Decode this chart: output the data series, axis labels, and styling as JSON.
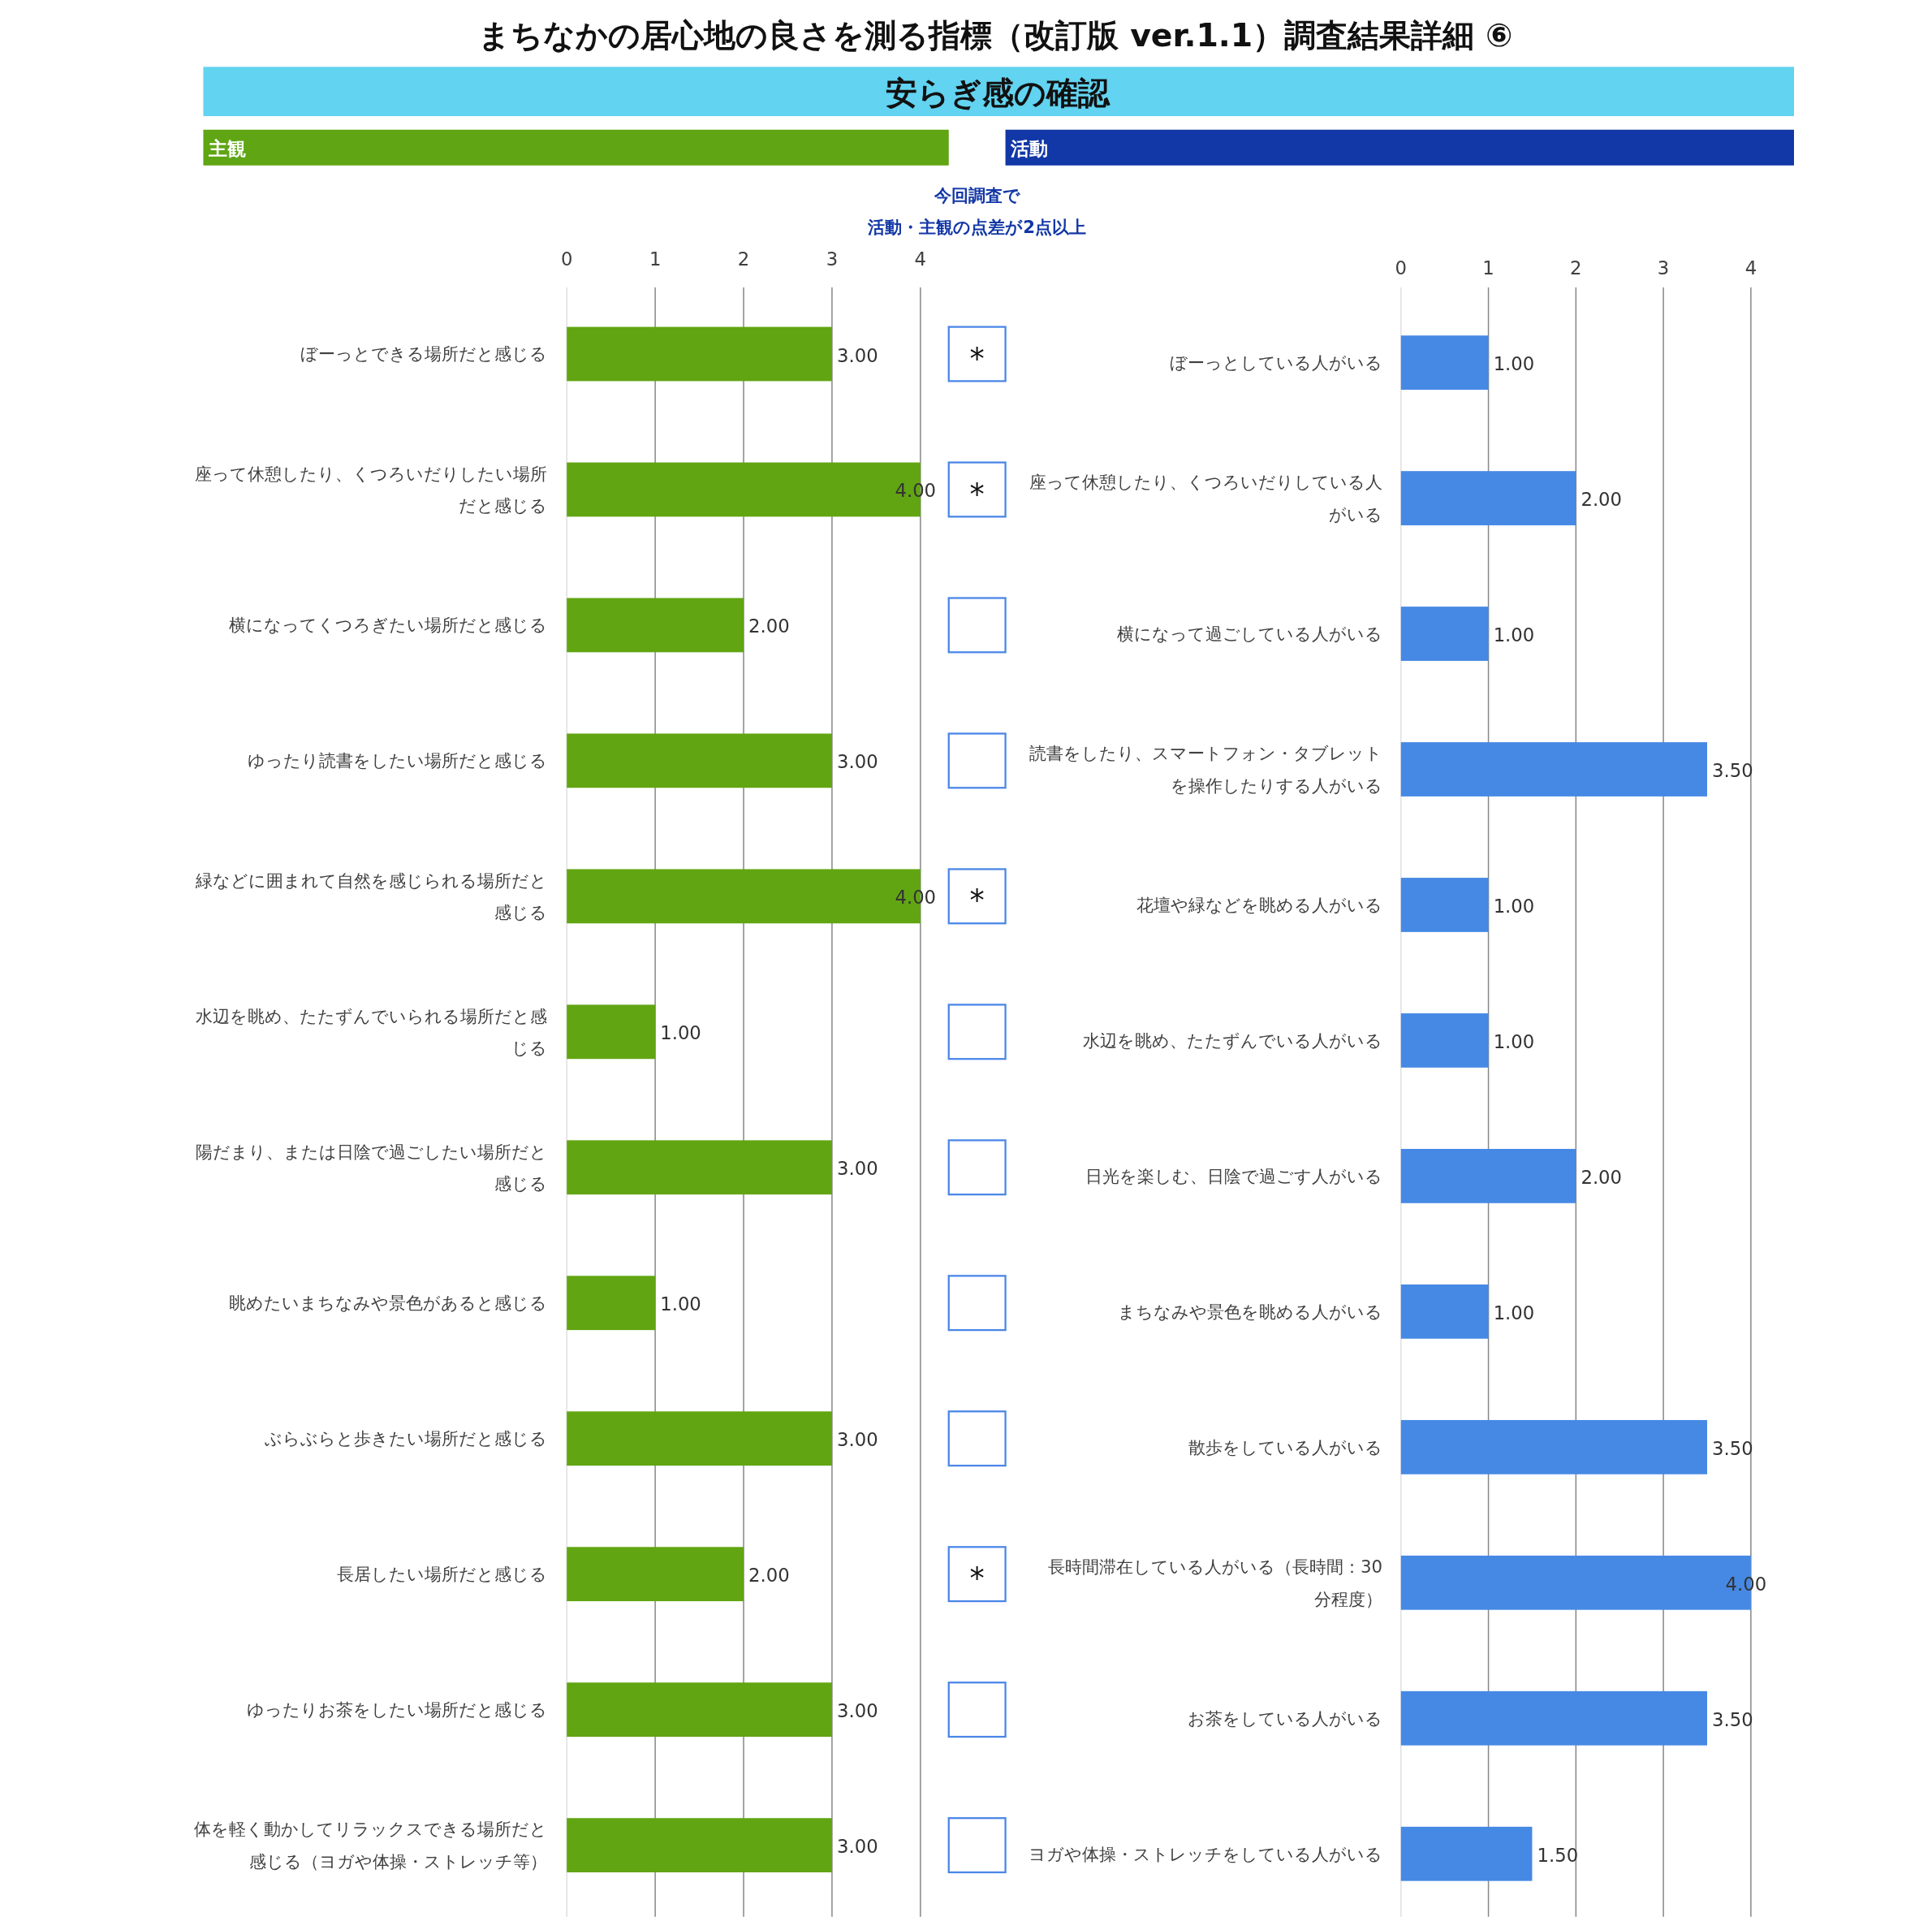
{
  "chart_data": [
    {
      "type": "other",
      "title": "まちなかの居心地の良さを測る指標（改訂版 ver.1.1）調査結果詳細 ⑥",
      "subtitle": "安らぎ感の確認"
    },
    {
      "type": "bar",
      "orientation": "horizontal",
      "title": "主観",
      "color": "#61a512",
      "categories": [
        "ぼーっとできる場所だと感じる",
        "座って休憩したり、くつろいだりしたい場所だと感じる",
        "横になってくつろぎたい場所だと感じる",
        "ゆったり読書をしたい場所だと感じる",
        "緑などに囲まれて自然を感じられる場所だと感じる",
        "水辺を眺め、たたずんでいられる場所だと感じる",
        "陽だまり、または日陰で過ごしたい場所だと感じる",
        "眺めたいまちなみや景色があると感じる",
        "ぶらぶらと歩きたい場所だと感じる",
        "長居したい場所だと感じる",
        "ゆったりお茶をしたい場所だと感じる",
        "体を軽く動かしてリラックスできる場所だと感じる（ヨガや体操・ストレッチ等）"
      ],
      "values": [
        3,
        4,
        2,
        3,
        4,
        1,
        3,
        1,
        3,
        2,
        3,
        3
      ],
      "value_labels": [
        "3.00",
        "4.00",
        "2.00",
        "3.00",
        "4.00",
        "1.00",
        "3.00",
        "1.00",
        "3.00",
        "2.00",
        "3.00",
        "3.00"
      ],
      "xlim": [
        0,
        4
      ],
      "xticks": [
        0,
        1,
        2,
        3,
        4
      ],
      "grid": "x"
    },
    {
      "type": "other",
      "annotations": [
        "今回調査で",
        "活動・主観の点差が2点以上"
      ],
      "value_labels": [
        "*",
        "*",
        null,
        null,
        "*",
        null,
        null,
        null,
        null,
        "*",
        null,
        null
      ]
    },
    {
      "type": "bar",
      "orientation": "horizontal",
      "title": "活動",
      "color": "#4689e4",
      "categories": [
        "ぼーっとしている人がいる",
        "座って休憩したり、くつろいだりしている人がいる",
        "横になって過ごしている人がいる",
        "読書をしたり、スマートフォン・タブレットを操作したりする人がいる",
        "花壇や緑などを眺める人がいる",
        "水辺を眺め、たたずんでいる人がいる",
        "日光を楽しむ、日陰で過ごす人がいる",
        "まちなみや景色を眺める人がいる",
        "散歩をしている人がいる",
        "長時間滞在している人がいる（長時間：30分程度）",
        "お茶をしている人がいる",
        "ヨガや体操・ストレッチをしている人がいる"
      ],
      "values": [
        1,
        2,
        1,
        3.5,
        1,
        1,
        2,
        1,
        3.5,
        4,
        3.5,
        1.5
      ],
      "value_labels": [
        "1.00",
        "2.00",
        "1.00",
        "3.50",
        "1.00",
        "1.00",
        "2.00",
        "1.00",
        "3.50",
        "4.00",
        "3.50",
        "1.50"
      ],
      "xlim": [
        0,
        4
      ],
      "xticks": [
        0,
        1,
        2,
        3,
        4
      ],
      "grid": "x"
    }
  ]
}
